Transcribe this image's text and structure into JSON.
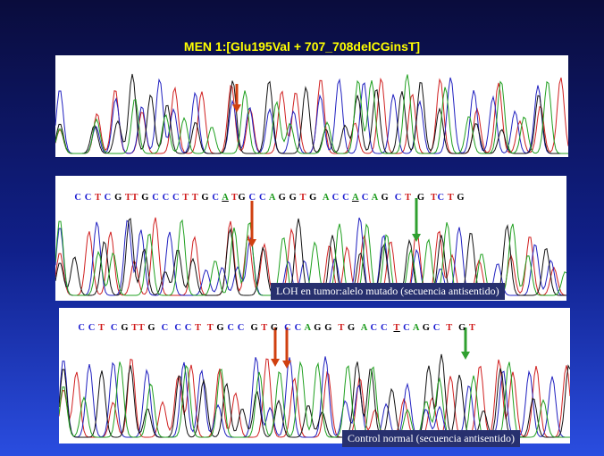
{
  "title": "MEN 1:[Glu195Val + 707_708delCGinsT]",
  "panel_2": {
    "sequence": [
      "C C T C G TT G C C C T T G C ",
      "A",
      " TG C C A G G T G  A C C ",
      "A",
      " C A G  C T  G  TC T G"
    ],
    "caption": "LOH en tumor:alelo mutado (secuencia antisentido)"
  },
  "panel_3": {
    "sequence": [
      "C C T  C G TT G  C  C C T  T G C C  G T G  C C A G G  T G  A C C  ",
      "T",
      " C A G C  T  G T"
    ],
    "caption": "Control normal (secuencia antisentido)"
  }
}
